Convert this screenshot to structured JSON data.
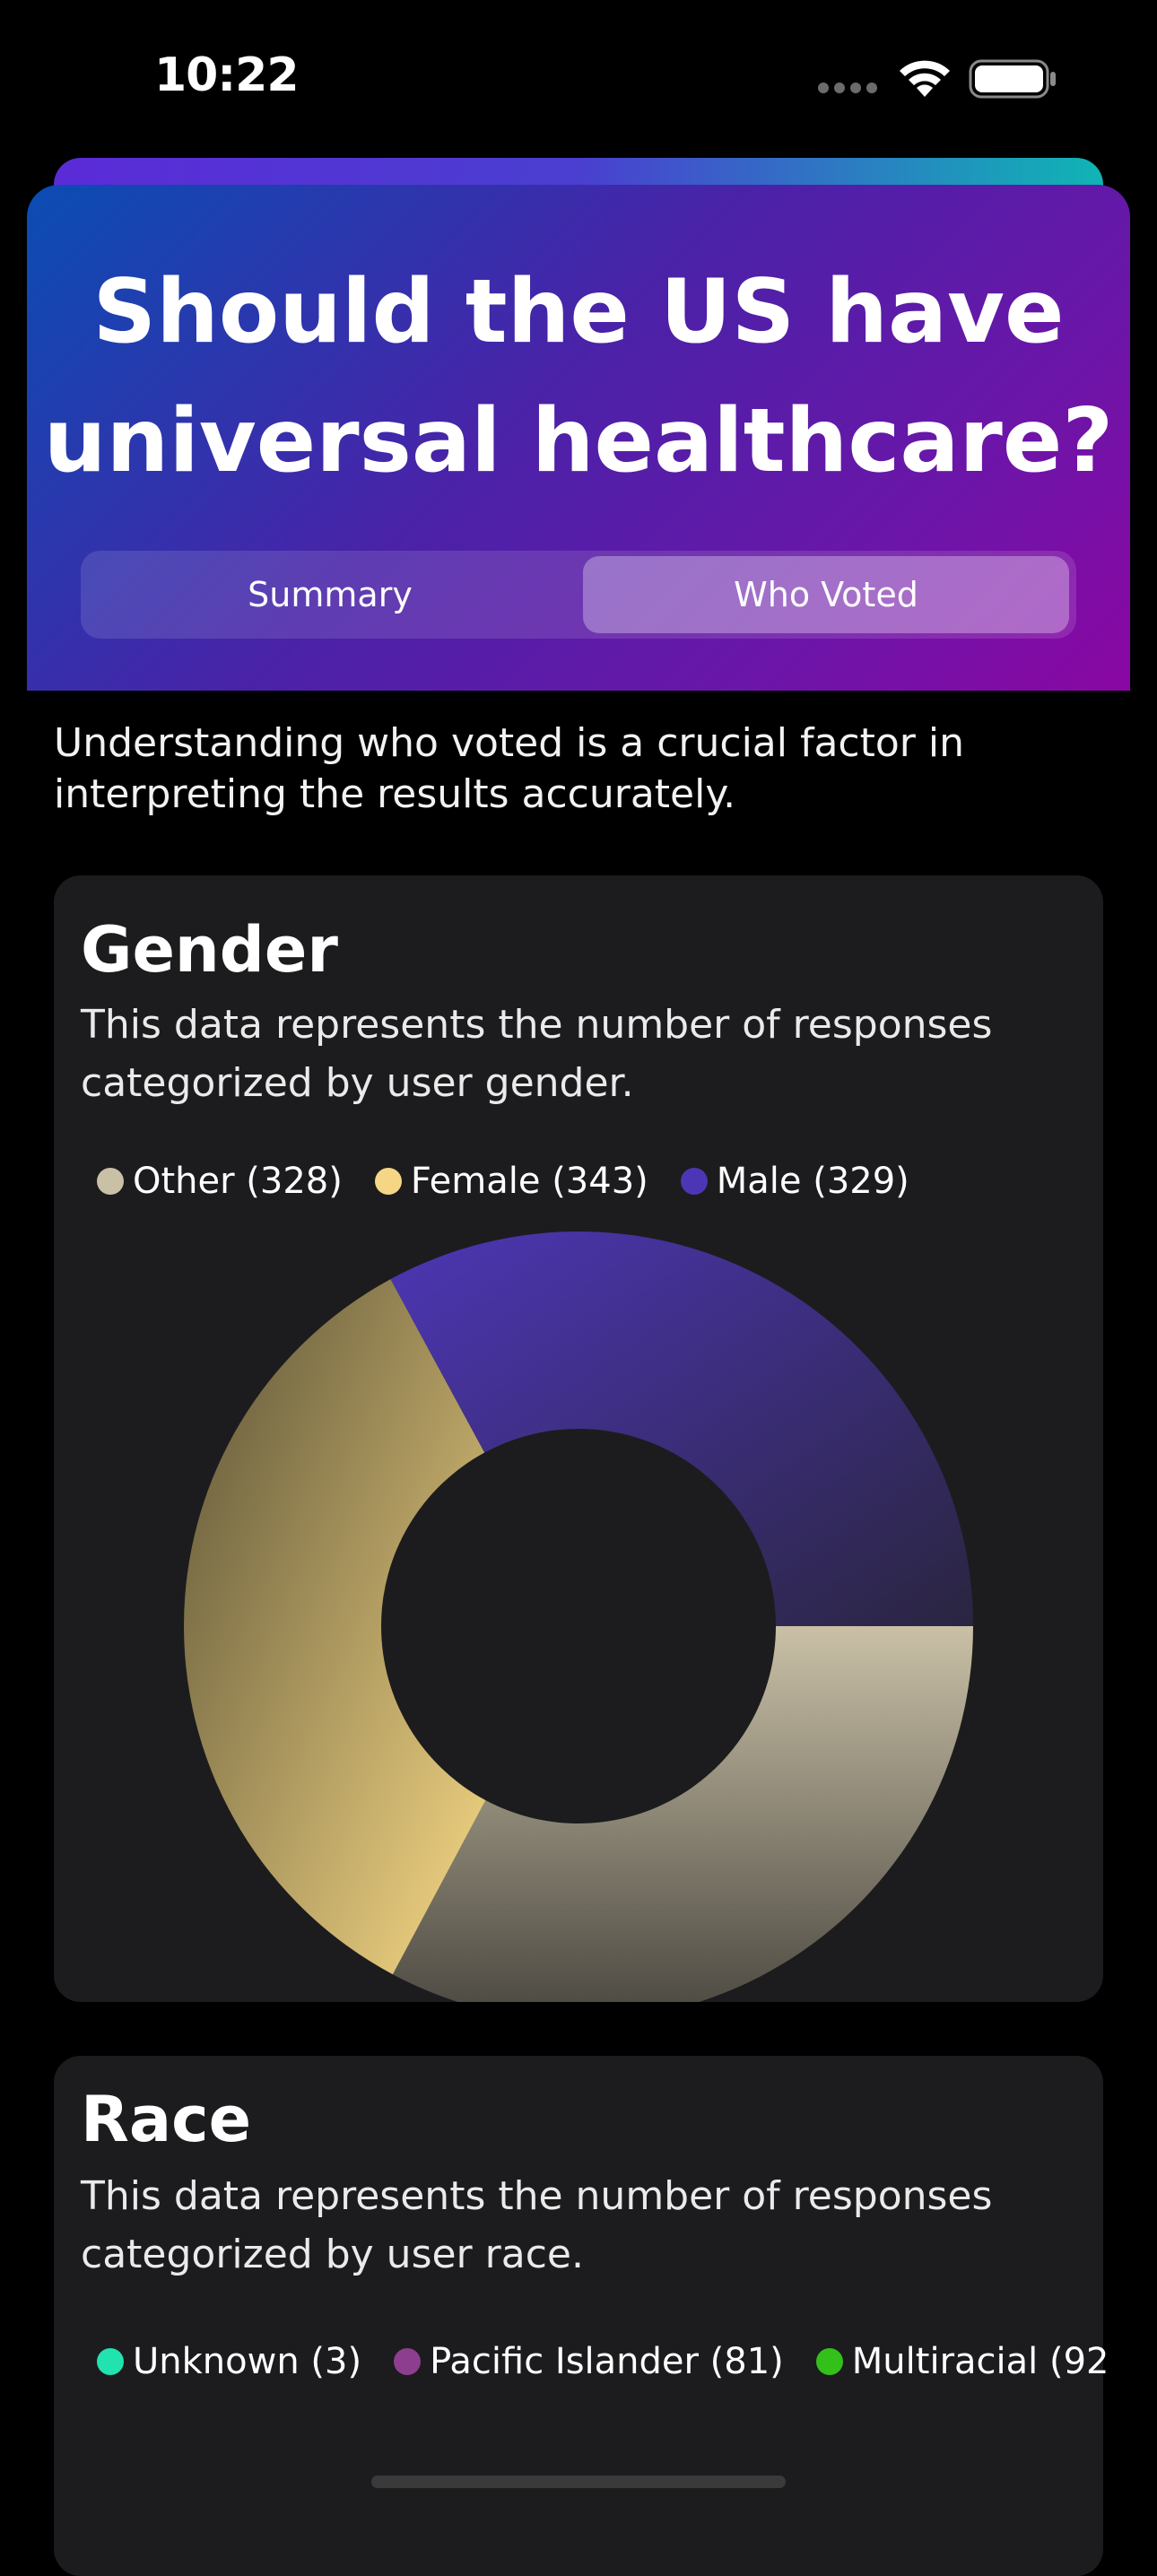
{
  "status_bar": {
    "time": "10:22"
  },
  "header": {
    "title": "Should the US have universal healthcare?",
    "tabs": [
      {
        "label": "Summary",
        "selected": false
      },
      {
        "label": "Who Voted",
        "selected": true
      }
    ]
  },
  "intro_text": "Understanding who voted is a crucial factor in interpreting the results accurately.",
  "gender_section": {
    "title": "Gender",
    "description": "This data represents the number of responses categorized by user gender."
  },
  "race_section": {
    "title": "Race",
    "description": "This data represents the number of responses categorized by user race.",
    "legend": [
      {
        "label": "Unknown (3)",
        "color": "#21e3b0"
      },
      {
        "label": "Pacific Islander (81)",
        "color": "#8e3e8e"
      },
      {
        "label": "Multiracial (92",
        "color": "#34c01a"
      }
    ]
  },
  "chart_data": {
    "type": "pie",
    "title": "Gender",
    "categories": [
      "Other",
      "Female",
      "Male"
    ],
    "values": [
      328,
      343,
      329
    ],
    "legend_labels": [
      "Other (328)",
      "Female (343)",
      "Male (329)"
    ],
    "colors": [
      "#c9c0a6",
      "#f5d685",
      "#4d36b5"
    ],
    "legend_position": "top-left"
  }
}
